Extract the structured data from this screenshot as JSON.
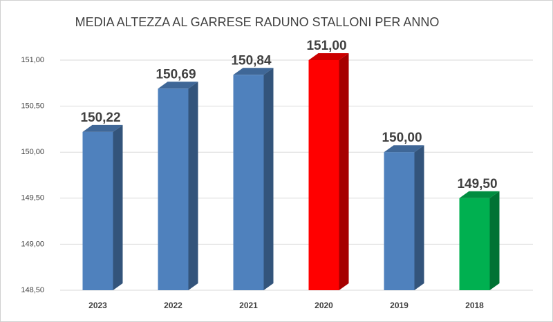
{
  "chart_data": {
    "type": "bar3d",
    "title": "MEDIA ALTEZZA AL GARRESE RADUNO STALLONI PER ANNO",
    "categories": [
      "2023",
      "2022",
      "2021",
      "2020",
      "2019",
      "2018"
    ],
    "values": [
      150.22,
      150.69,
      150.84,
      151.0,
      150.0,
      149.5
    ],
    "value_labels": [
      "150,22",
      "150,69",
      "150,84",
      "151,00",
      "150,00",
      "149,50"
    ],
    "colors": [
      "#4f81bd",
      "#4f81bd",
      "#4f81bd",
      "#ff0000",
      "#4f81bd",
      "#00b050"
    ],
    "ylim": [
      148.5,
      151.0
    ],
    "yticks": [
      {
        "value": 148.5,
        "label": "148,50"
      },
      {
        "value": 149.0,
        "label": "149,00"
      },
      {
        "value": 149.5,
        "label": "149,50"
      },
      {
        "value": 150.0,
        "label": "150,00"
      },
      {
        "value": 150.5,
        "label": "150,50"
      },
      {
        "value": 151.0,
        "label": "151,00"
      }
    ],
    "grid": true
  }
}
